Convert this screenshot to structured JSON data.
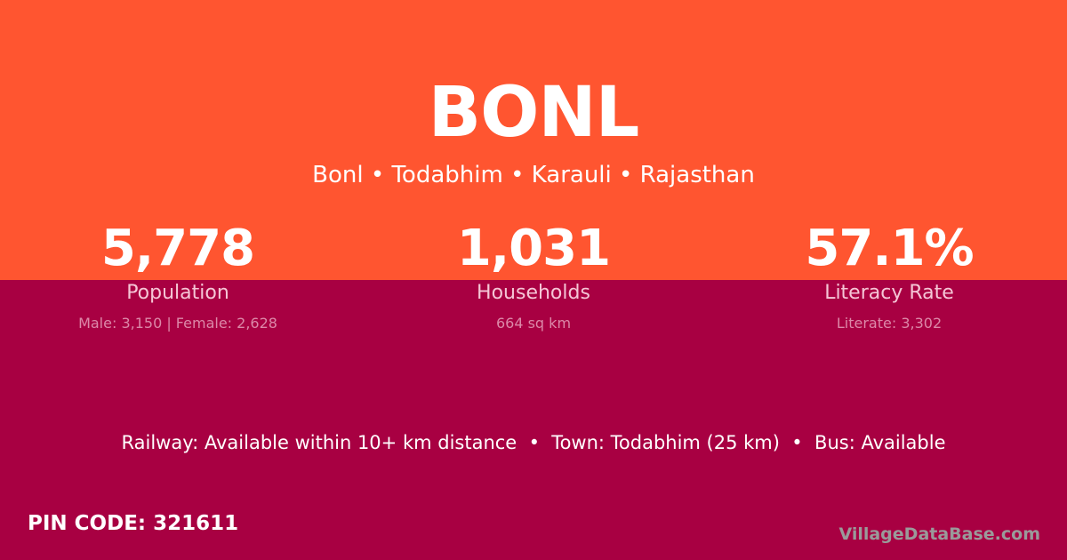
{
  "colors": {
    "top": "#ff5530",
    "bottom": "#a80042"
  },
  "title": "BONL",
  "subtitle": "Bonl • Todabhim • Karauli • Rajasthan",
  "stats": [
    {
      "value": "5,778",
      "label": "Population",
      "detail": "Male: 3,150 | Female: 2,628"
    },
    {
      "value": "1,031",
      "label": "Households",
      "detail": "664 sq km"
    },
    {
      "value": "57.1%",
      "label": "Literacy Rate",
      "detail": "Literate: 3,302"
    }
  ],
  "amenities": "Railway: Available within 10+ km distance  •  Town: Todabhim (25 km)  •  Bus: Available",
  "pin": "PIN CODE: 321611",
  "brand": "VillageDataBase.com"
}
